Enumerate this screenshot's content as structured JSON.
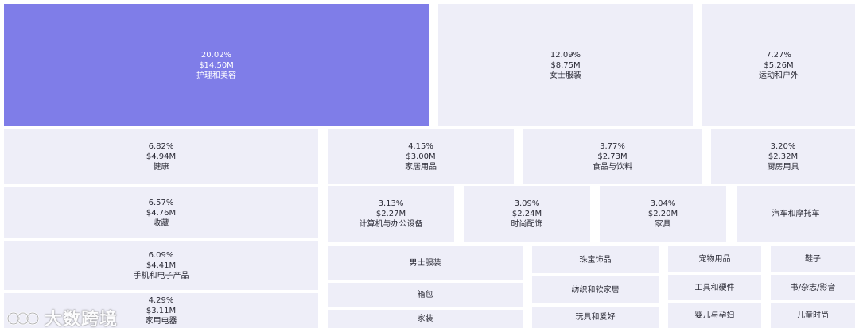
{
  "chart_data": {
    "type": "treemap",
    "title": "",
    "items": [
      {
        "pct": "20.02%",
        "value": "$14.50M",
        "label": "护理和美容"
      },
      {
        "pct": "12.09%",
        "value": "$8.75M",
        "label": "女士服装"
      },
      {
        "pct": "7.27%",
        "value": "$5.26M",
        "label": "运动和户外"
      },
      {
        "pct": "6.82%",
        "value": "$4.94M",
        "label": "健康"
      },
      {
        "pct": "4.15%",
        "value": "$3.00M",
        "label": "家居用品"
      },
      {
        "pct": "3.77%",
        "value": "$2.73M",
        "label": "食品与饮料"
      },
      {
        "pct": "3.20%",
        "value": "$2.32M",
        "label": "厨房用具"
      },
      {
        "pct": "6.57%",
        "value": "$4.76M",
        "label": "收藏"
      },
      {
        "pct": "3.13%",
        "value": "$2.27M",
        "label": "计算机与办公设备"
      },
      {
        "pct": "3.09%",
        "value": "$2.24M",
        "label": "时尚配饰"
      },
      {
        "pct": "3.04%",
        "value": "$2.20M",
        "label": "家具"
      },
      {
        "pct": "",
        "value": "",
        "label": "汽车和摩托车"
      },
      {
        "pct": "6.09%",
        "value": "$4.41M",
        "label": "手机和电子产品"
      },
      {
        "pct": "4.29%",
        "value": "$3.11M",
        "label": "家用电器"
      },
      {
        "pct": "",
        "value": "",
        "label": "男士服装"
      },
      {
        "pct": "",
        "value": "",
        "label": "箱包"
      },
      {
        "pct": "",
        "value": "",
        "label": "家装"
      },
      {
        "pct": "",
        "value": "",
        "label": "珠宝饰品"
      },
      {
        "pct": "",
        "value": "",
        "label": "纺织和软家居"
      },
      {
        "pct": "",
        "value": "",
        "label": "玩具和爱好"
      },
      {
        "pct": "",
        "value": "",
        "label": "宠物用品"
      },
      {
        "pct": "",
        "value": "",
        "label": "工具和硬件"
      },
      {
        "pct": "",
        "value": "",
        "label": "婴儿与孕妇"
      },
      {
        "pct": "",
        "value": "",
        "label": "鞋子"
      },
      {
        "pct": "",
        "value": "",
        "label": "书/杂志/影音"
      },
      {
        "pct": "",
        "value": "",
        "label": "儿童时尚"
      }
    ],
    "colors": {
      "highlight": "#7f7de8",
      "default": "#eeeef8"
    }
  },
  "watermark": {
    "text": "大数跨境"
  }
}
